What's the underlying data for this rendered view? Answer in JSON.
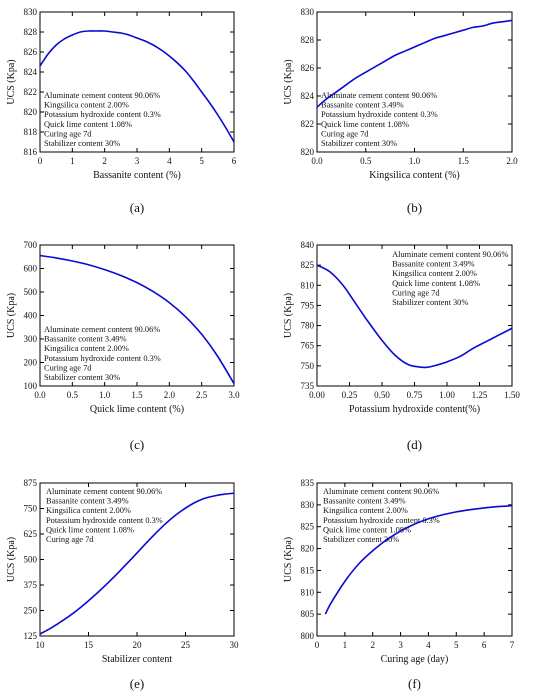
{
  "chart_data": [
    {
      "type": "line",
      "panel_label": "(a)",
      "xlabel": "Bassanite content (%)",
      "ylabel": "UCS (Kpa)",
      "xlim": [
        0,
        6
      ],
      "ylim": [
        816,
        830
      ],
      "xticks": [
        0,
        1,
        2,
        3,
        4,
        5,
        6
      ],
      "yticks": [
        816,
        818,
        820,
        822,
        824,
        826,
        828,
        830
      ],
      "xtick_labels": [
        "0",
        "1",
        "2",
        "3",
        "4",
        "5",
        "6"
      ],
      "ytick_labels": [
        "816",
        "818",
        "820",
        "822",
        "824",
        "826",
        "828",
        "830"
      ],
      "annotations": [
        "Aluminate cement content 90.06%",
        "Kingsilica content 2.00%",
        "Potassium hydroxide content 0.3%",
        "Quick lime content 1.08%",
        "Curing age 7d",
        "Stabilizer content 30%"
      ],
      "annotation_position": "bottom-left",
      "grid": false,
      "series": [
        {
          "color": "#0a0ad2",
          "x": [
            0,
            0.25,
            0.5,
            0.75,
            1.0,
            1.25,
            1.5,
            1.75,
            2.0,
            2.25,
            2.5,
            2.75,
            3.0,
            3.25,
            3.5,
            3.75,
            4.0,
            4.25,
            4.5,
            4.75,
            5.0,
            5.25,
            5.5,
            5.75,
            6.0
          ],
          "y": [
            824.6,
            825.8,
            826.7,
            827.3,
            827.7,
            828.0,
            828.1,
            828.1,
            828.1,
            828.0,
            827.9,
            827.7,
            827.4,
            827.1,
            826.7,
            826.2,
            825.6,
            824.9,
            824.1,
            823.1,
            822.0,
            820.9,
            819.7,
            818.4,
            817.0
          ]
        }
      ]
    },
    {
      "type": "line",
      "panel_label": "(b)",
      "xlabel": "Kingsilica content (%)",
      "ylabel": "UCS (Kpa)",
      "xlim": [
        0,
        2
      ],
      "ylim": [
        820,
        830
      ],
      "xticks": [
        0,
        0.5,
        1.0,
        1.5,
        2.0
      ],
      "yticks": [
        820,
        822,
        824,
        826,
        828,
        830
      ],
      "xtick_labels": [
        "0.0",
        "0.5",
        "1.0",
        "1.5",
        "2.0"
      ],
      "ytick_labels": [
        "820",
        "822",
        "824",
        "826",
        "828",
        "830"
      ],
      "annotations": [
        "Aluminate cement content 90.06%",
        "Bassanite content 3.49%",
        "Potassium hydroxide content 0.3%",
        "Quick lime content 1.08%",
        "Curing age 7d",
        "Stabilizer content 30%"
      ],
      "annotation_position": "bottom-left",
      "grid": false,
      "series": [
        {
          "color": "#0a0ad2",
          "x": [
            0,
            0.1,
            0.2,
            0.3,
            0.4,
            0.5,
            0.6,
            0.7,
            0.8,
            0.9,
            1.0,
            1.1,
            1.2,
            1.3,
            1.4,
            1.5,
            1.6,
            1.7,
            1.8,
            1.9,
            2.0
          ],
          "y": [
            823.2,
            823.8,
            824.3,
            824.8,
            825.3,
            825.7,
            826.1,
            826.5,
            826.9,
            827.2,
            827.5,
            827.8,
            828.1,
            828.3,
            828.5,
            828.7,
            828.9,
            829.0,
            829.2,
            829.3,
            829.4
          ]
        }
      ]
    },
    {
      "type": "line",
      "panel_label": "(c)",
      "xlabel": "Quick lime content (%)",
      "ylabel": "UCS (Kpa)",
      "xlim": [
        0,
        3
      ],
      "ylim": [
        100,
        700
      ],
      "xticks": [
        0,
        0.5,
        1.0,
        1.5,
        2.0,
        2.5,
        3.0
      ],
      "yticks": [
        100,
        200,
        300,
        400,
        500,
        600,
        700
      ],
      "xtick_labels": [
        "0.0",
        "0.5",
        "1.0",
        "1.5",
        "2.0",
        "2.5",
        "3.0"
      ],
      "ytick_labels": [
        "100",
        "200",
        "300",
        "400",
        "500",
        "600",
        "700"
      ],
      "annotations": [
        "Aluminate cement content 90.06%",
        "Bassanite content 3.49%",
        "Kingsilica content 2.00%",
        "Potassium hydroxide content 0.3%",
        "Curing age 7d",
        "Stabilizer content 30%"
      ],
      "annotation_position": "bottom-left",
      "grid": false,
      "series": [
        {
          "color": "#0a0ad2",
          "x": [
            0,
            0.25,
            0.5,
            0.75,
            1.0,
            1.25,
            1.5,
            1.75,
            2.0,
            2.25,
            2.5,
            2.75,
            3.0
          ],
          "y": [
            655,
            645,
            632,
            616,
            595,
            570,
            540,
            502,
            455,
            395,
            320,
            225,
            110
          ]
        }
      ]
    },
    {
      "type": "line",
      "panel_label": "(d)",
      "xlabel": "Potassium hydroxide content(%)",
      "ylabel": "UCS (Kpa)",
      "xlim": [
        0,
        1.5
      ],
      "ylim": [
        735,
        840
      ],
      "xticks": [
        0,
        0.25,
        0.5,
        0.75,
        1.0,
        1.25,
        1.5
      ],
      "yticks": [
        735,
        750,
        765,
        780,
        795,
        810,
        825,
        840
      ],
      "xtick_labels": [
        "0.00",
        "0.25",
        "0.50",
        "0.75",
        "1.00",
        "1.25",
        "1.50"
      ],
      "ytick_labels": [
        "735",
        "750",
        "765",
        "780",
        "795",
        "810",
        "825",
        "840"
      ],
      "annotations": [
        "Aluminate cement content 90.06%",
        "Bassanite content 3.49%",
        "Kingsilica content 2.00%",
        "Quick lime content 1.08%",
        "Curing age 7d",
        "Stabilizer content 30%"
      ],
      "annotation_position": "top-right",
      "grid": false,
      "series": [
        {
          "color": "#0a0ad2",
          "x": [
            0,
            0.1,
            0.2,
            0.3,
            0.4,
            0.5,
            0.6,
            0.7,
            0.8,
            0.85,
            0.9,
            1.0,
            1.1,
            1.2,
            1.3,
            1.4,
            1.5
          ],
          "y": [
            825,
            820,
            810,
            796,
            782,
            769,
            758,
            751,
            749,
            749,
            750,
            753,
            757,
            763,
            768,
            773,
            778
          ]
        }
      ]
    },
    {
      "type": "line",
      "panel_label": "(e)",
      "xlabel": "Stabilizer content",
      "ylabel": "UCS (Kpa)",
      "xlim": [
        10,
        30
      ],
      "ylim": [
        125,
        875
      ],
      "xticks": [
        10,
        15,
        20,
        25,
        30
      ],
      "yticks": [
        125,
        250,
        375,
        500,
        625,
        750,
        875
      ],
      "xtick_labels": [
        "10",
        "15",
        "20",
        "25",
        "30"
      ],
      "ytick_labels": [
        "125",
        "250",
        "375",
        "500",
        "625",
        "750",
        "875"
      ],
      "annotations": [
        "Aluminate cement content 90.06%",
        "Bassanite content 3.49%",
        "Kingsilica content 2.00%",
        "Potassium hydroxide content 0.3%",
        "Quick lime content 1.08%",
        "Curing age 7d"
      ],
      "annotation_position": "top-left",
      "grid": false,
      "series": [
        {
          "color": "#0a0ad2",
          "x": [
            10,
            11,
            12,
            13,
            14,
            15,
            16,
            17,
            18,
            19,
            20,
            21,
            22,
            23,
            24,
            25,
            26,
            27,
            28,
            29,
            30
          ],
          "y": [
            135,
            160,
            190,
            222,
            258,
            298,
            340,
            385,
            432,
            482,
            532,
            583,
            632,
            678,
            718,
            752,
            780,
            800,
            812,
            820,
            825
          ]
        }
      ]
    },
    {
      "type": "line",
      "panel_label": "(f)",
      "xlabel": "Curing age (day)",
      "ylabel": "UCS (Kpa)",
      "xlim": [
        0,
        7
      ],
      "ylim": [
        800,
        835
      ],
      "xticks": [
        0,
        1,
        2,
        3,
        4,
        5,
        6,
        7
      ],
      "yticks": [
        800,
        805,
        810,
        815,
        820,
        825,
        830,
        835
      ],
      "xtick_labels": [
        "0",
        "1",
        "2",
        "3",
        "4",
        "5",
        "6",
        "7"
      ],
      "ytick_labels": [
        "800",
        "805",
        "810",
        "815",
        "820",
        "825",
        "830",
        "835"
      ],
      "annotations": [
        "Aluminate cement content 90.06%",
        "Bassanite content 3.49%",
        "Kingsilica content 2.00%",
        "Potassium hydroxide content 0.3%",
        "Quick lime content 1.08%",
        "Stabilizer content 30%"
      ],
      "annotation_position": "top-left",
      "grid": false,
      "series": [
        {
          "color": "#0a0ad2",
          "x": [
            0.3,
            0.5,
            1.0,
            1.5,
            2.0,
            2.5,
            3.0,
            3.5,
            4.0,
            4.5,
            5.0,
            5.5,
            6.0,
            6.5,
            7.0
          ],
          "y": [
            805,
            807.5,
            812.5,
            816.5,
            819.5,
            822,
            824,
            825.6,
            826.8,
            827.7,
            828.4,
            828.9,
            829.3,
            829.6,
            829.8
          ]
        }
      ]
    }
  ]
}
